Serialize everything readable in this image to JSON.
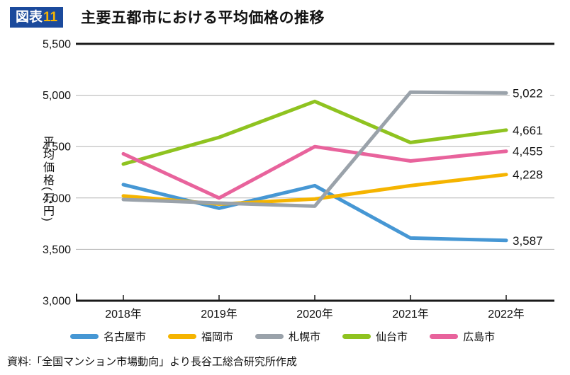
{
  "header": {
    "badge_label": "図表",
    "badge_number": "11",
    "title": "主要五都市における平均価格の推移"
  },
  "colors": {
    "badge_background": "#1b4a9c",
    "badge_number": "#f8b500",
    "grid_line": "#b3b3b3",
    "axis_line": "#1a1a1a"
  },
  "chart_data": {
    "type": "line",
    "title": "主要五都市における平均価格の推移",
    "categories": [
      "2018年",
      "2019年",
      "2020年",
      "2021年",
      "2022年"
    ],
    "series": [
      {
        "name": "名古屋市",
        "slug": "nagoya",
        "color": "#4697d4",
        "values": [
          4130,
          3900,
          4120,
          3610,
          3587
        ],
        "end_label": "3,587"
      },
      {
        "name": "福岡市",
        "slug": "fukuoka",
        "color": "#f5b400",
        "values": [
          4020,
          3940,
          3990,
          4120,
          4228
        ],
        "end_label": "4,228"
      },
      {
        "name": "札幌市",
        "slug": "sapporo",
        "color": "#9aa2aa",
        "values": [
          3985,
          3950,
          3920,
          5030,
          5022
        ],
        "end_label": "5,022"
      },
      {
        "name": "仙台市",
        "slug": "sendai",
        "color": "#8fc320",
        "values": [
          4330,
          4590,
          4940,
          4540,
          4661
        ],
        "end_label": "4,661"
      },
      {
        "name": "広島市",
        "slug": "hiroshima",
        "color": "#e8639c",
        "values": [
          4430,
          4000,
          4500,
          4360,
          4455
        ],
        "end_label": "4,455"
      }
    ],
    "draw_order": [
      0,
      1,
      3,
      4,
      2
    ],
    "ylabel": "平均価格(万円)",
    "ylim": [
      3000,
      5500
    ],
    "y_tick_values": [
      5500,
      5000,
      4500,
      4000,
      3500,
      3000
    ],
    "y_tick_labels": [
      "5,500",
      "5,000",
      "4,500",
      "4,000",
      "3,500",
      "3,000"
    ],
    "grid": true,
    "legend_position": "bottom"
  },
  "source": "資料:「全国マンション市場動向」より長谷工総合研究所作成"
}
